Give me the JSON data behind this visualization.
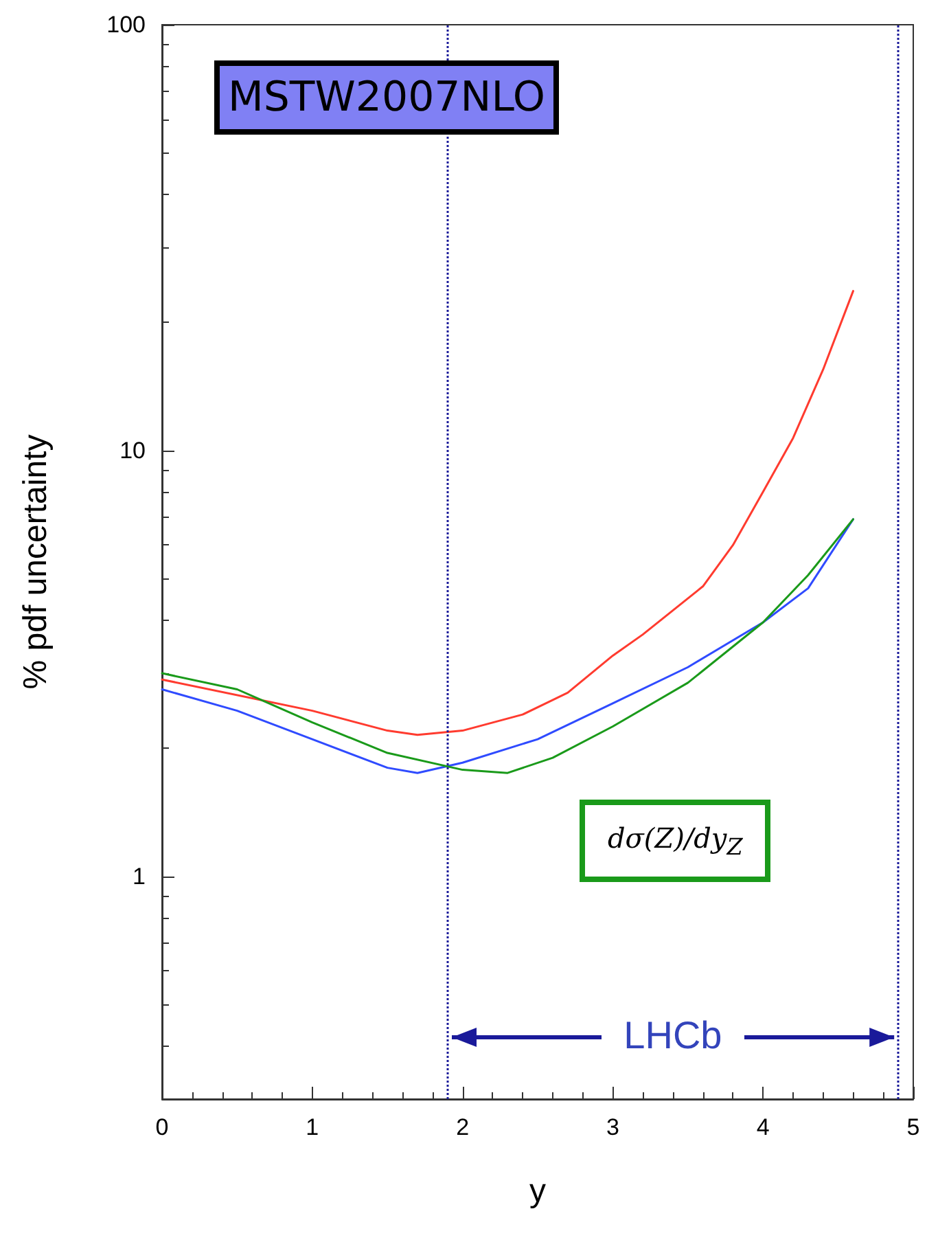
{
  "chart_data": {
    "type": "line",
    "title": "MSTW2007NLO",
    "xlabel": "y",
    "ylabel": "% pdf uncertainty",
    "log": "y",
    "xlim": [
      0,
      5
    ],
    "xticks": [
      0,
      1,
      2,
      3,
      4,
      5
    ],
    "ylim": [
      0.3,
      100
    ],
    "yticks": [
      1,
      10,
      100
    ],
    "grid": false,
    "legend": false,
    "marker": "none",
    "line_style": "solid",
    "series": [
      {
        "color": "#ff3b2f",
        "x": [
          0,
          1,
          1.5,
          1.7,
          2,
          2.4,
          2.7,
          3,
          3.2,
          3.6,
          3.8,
          4,
          4.2,
          4.4,
          4.6
        ],
        "values": [
          2.9,
          2.45,
          2.2,
          2.15,
          2.2,
          2.4,
          2.7,
          3.3,
          3.7,
          4.8,
          6,
          8,
          10.7,
          15.5,
          23.7
        ]
      },
      {
        "color": "#2f4bff",
        "x": [
          0,
          0.5,
          1,
          1.5,
          1.7,
          2,
          2.5,
          3,
          3.5,
          4,
          4.3,
          4.6
        ],
        "values": [
          2.75,
          2.45,
          2.1,
          1.8,
          1.75,
          1.85,
          2.1,
          2.55,
          3.1,
          3.95,
          4.75,
          6.9
        ]
      },
      {
        "name": "dσ(Z)/dy$_{Z}$",
        "color": "#1a9a1a",
        "x": [
          0,
          0.5,
          1,
          1.5,
          2,
          2.3,
          2.6,
          3,
          3.5,
          4,
          4.3,
          4.6
        ],
        "values": [
          3,
          2.75,
          2.3,
          1.95,
          1.78,
          1.75,
          1.9,
          2.25,
          2.85,
          3.95,
          5.1,
          6.9
        ]
      }
    ],
    "ref_lines": [
      {
        "axis": "x",
        "value": 1.9,
        "label": "LHCb",
        "color": "#1a1a9a",
        "line_style": "dotted"
      },
      {
        "axis": "x",
        "value": 4.9,
        "color": "#1a1a9a",
        "line_style": "dotted"
      }
    ]
  }
}
